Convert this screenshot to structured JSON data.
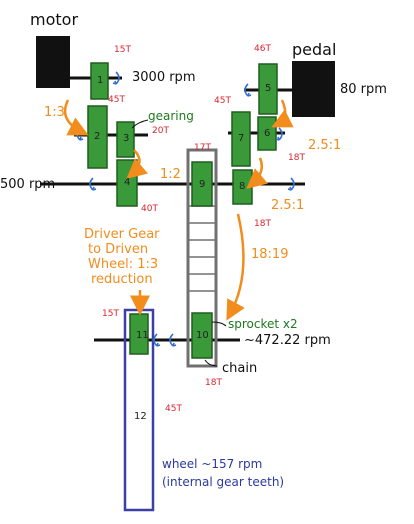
{
  "labels": {
    "motor": "motor",
    "pedal": "pedal",
    "motor_rpm": "3000 rpm",
    "pedal_rpm": "80 rpm",
    "shaft_rpm": "500 rpm",
    "ratio_1_3": "1:3",
    "ratio_1_2": "1:2",
    "ratio_pedal_1": "2.5:1",
    "ratio_pedal_2": "2.5:1",
    "ratio_chain": "18:19",
    "gearing": "gearing",
    "sprocket": "sprocket x2",
    "chain": "chain",
    "driven_rpm": "~472.22 rpm",
    "wheel": "wheel ~157 rpm",
    "wheel_note": "(internal gear teeth)",
    "driver_note_1": "Driver Gear",
    "driver_note_2": "to Driven",
    "driver_note_3": "Wheel: 1:3",
    "driver_note_4": "reduction"
  },
  "teeth": {
    "g1": "15T",
    "g2": "45T",
    "g3": "20T",
    "g4": "40T",
    "g5": "46T",
    "g6": "18T",
    "g7": "45T",
    "g8": "18T",
    "g9": "17T",
    "g10": "18T",
    "g11": "15T",
    "g12": "45T"
  },
  "gear_numbers": {
    "g1": "1",
    "g2": "2",
    "g3": "3",
    "g4": "4",
    "g5": "5",
    "g6": "6",
    "g7": "7",
    "g8": "8",
    "g9": "9",
    "g10": "10",
    "g11": "11",
    "g12": "12"
  },
  "colors": {
    "gear_fill": "#3a9a3a",
    "gear_stroke": "#1f5d1f",
    "orange": "#f28c1c",
    "red": "#d8262f",
    "blue": "#2f6fd6",
    "wheel": "#3b3fa6",
    "chain": "#707070"
  }
}
